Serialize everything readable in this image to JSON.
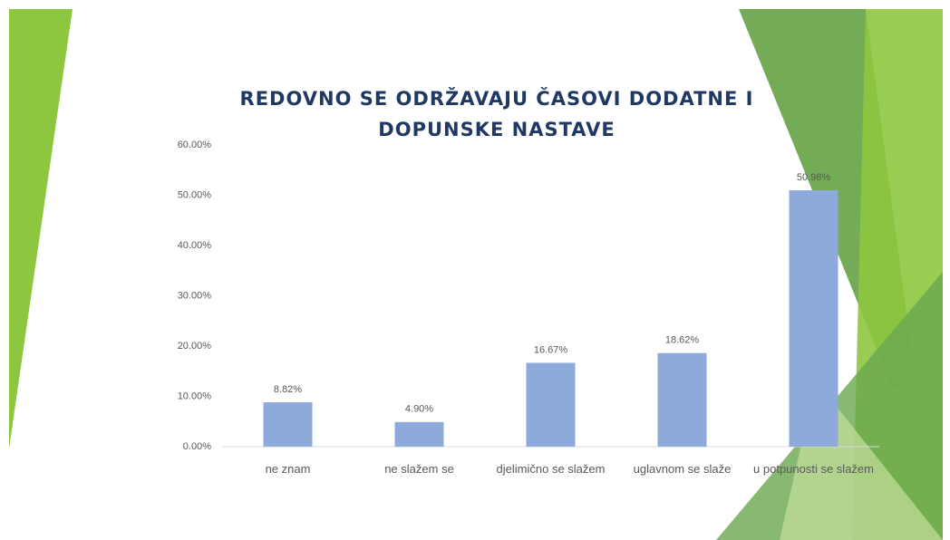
{
  "chart_data": {
    "type": "bar",
    "title": "REDOVNO SE ODRŽAVAJU ČASOVI DODATNE I DOPUNSKE NASTAVE",
    "categories": [
      "ne znam",
      "ne slažem se",
      "djelimično se slažem",
      "uglavnom se slaže",
      "u potpunosti se slažem"
    ],
    "values": [
      8.82,
      4.9,
      16.67,
      18.62,
      50.98
    ],
    "value_labels": [
      "8.82%",
      "4.90%",
      "16.67%",
      "18.62%",
      "50.98%"
    ],
    "color": "#8eaadb",
    "ylim": [
      0,
      60
    ],
    "yticks": [
      {
        "value": 0,
        "label": "0.00%"
      },
      {
        "value": 10,
        "label": "10.00%"
      },
      {
        "value": 20,
        "label": "20.00%"
      },
      {
        "value": 30,
        "label": "30.00%"
      },
      {
        "value": 40,
        "label": "40.00%"
      },
      {
        "value": 50,
        "label": "50.00%"
      },
      {
        "value": 60,
        "label": "60.00%"
      }
    ],
    "grid": false
  }
}
